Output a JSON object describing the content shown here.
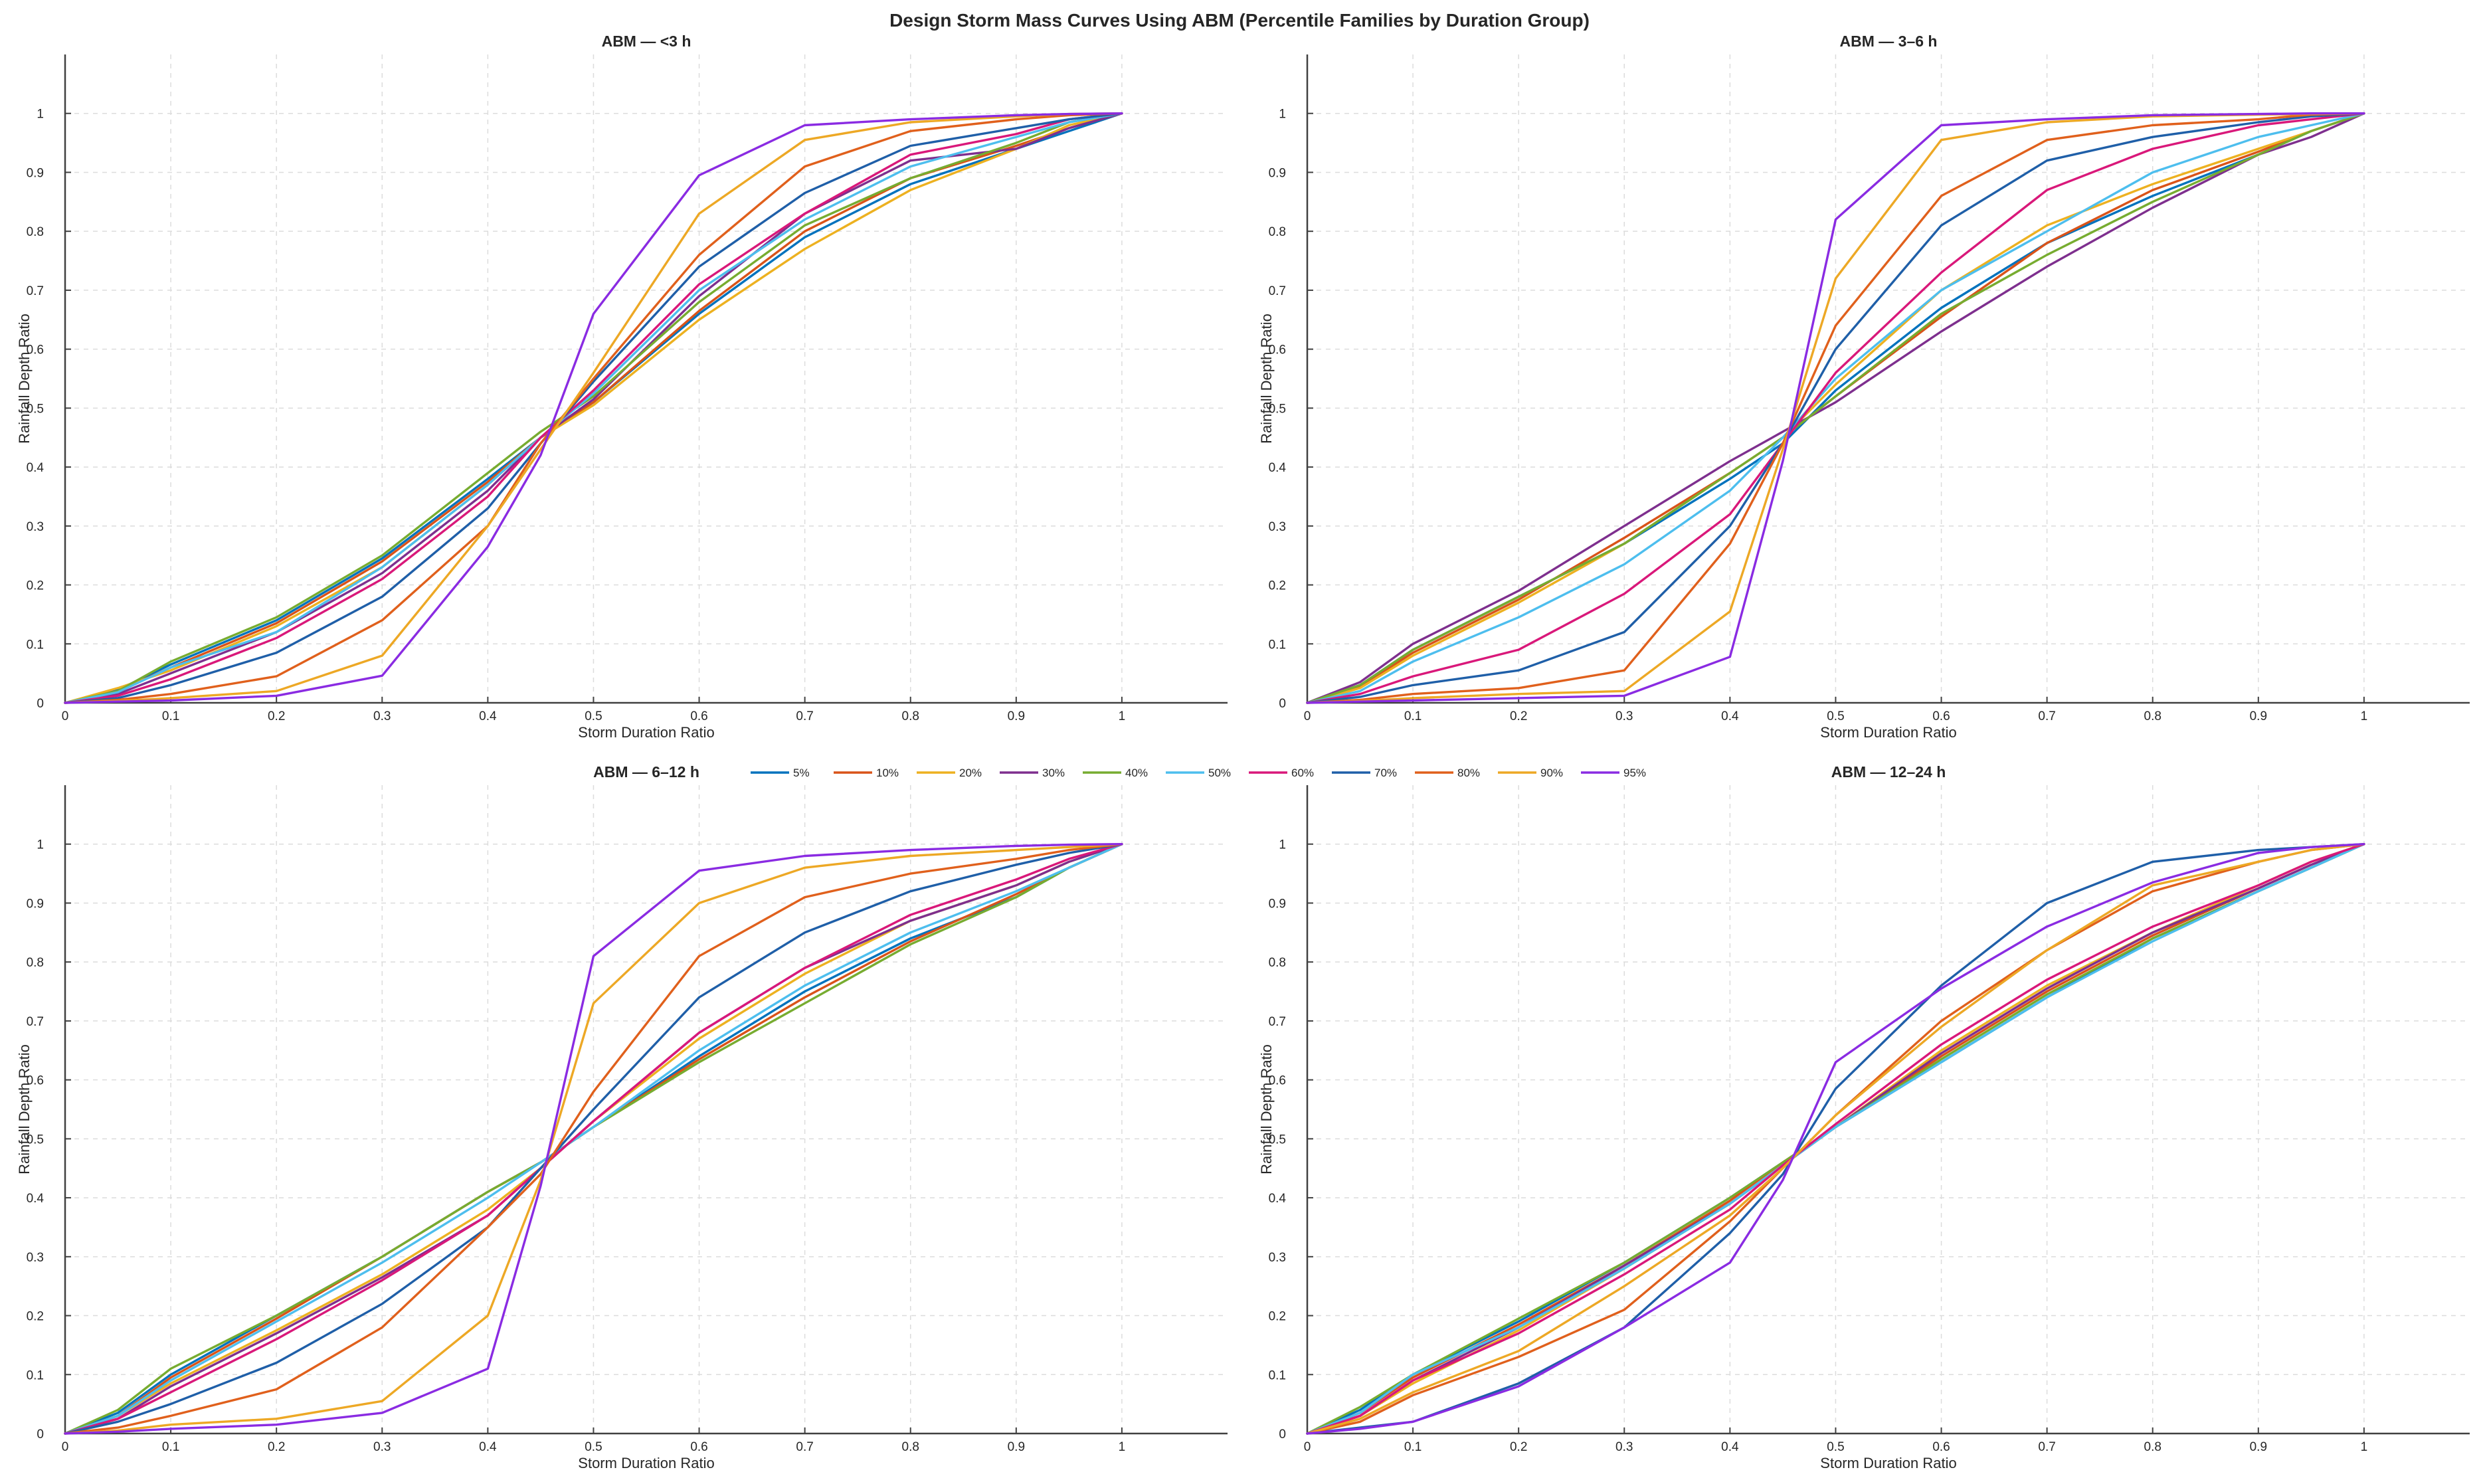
{
  "figure": {
    "title": "Design Storm Mass Curves Using ABM (Percentile Families by Duration Group)"
  },
  "legend": {
    "entries": [
      "5%",
      "10%",
      "20%",
      "30%",
      "40%",
      "50%",
      "60%",
      "70%",
      "80%",
      "90%",
      "95%"
    ],
    "colors": [
      "#0072BD",
      "#D95319",
      "#EDB120",
      "#7E2F8E",
      "#77AC30",
      "#4DBEEE",
      "#D9187A",
      "#1F5FA8",
      "#E0601C",
      "#EDA825",
      "#8A2BE2"
    ]
  },
  "chart_data": [
    {
      "type": "line",
      "title": "ABM — <3 h",
      "xlabel": "Storm Duration Ratio",
      "ylabel": "Rainfall Depth Ratio",
      "xlim": [
        0,
        1.1
      ],
      "ylim": [
        0,
        1.1
      ],
      "grid": true,
      "x_ticks": [
        "0",
        "0.1",
        "0.2",
        "0.3",
        "0.4",
        "0.5",
        "0.6",
        "0.7",
        "0.8",
        "0.9",
        "1"
      ],
      "y_ticks": [
        "0",
        "0.1",
        "0.2",
        "0.3",
        "0.4",
        "0.5",
        "0.6",
        "0.7",
        "0.8",
        "0.9",
        "1"
      ],
      "x": [
        0,
        0.05,
        0.1,
        0.2,
        0.3,
        0.4,
        0.45,
        0.5,
        0.6,
        0.7,
        0.8,
        0.9,
        0.95,
        1
      ],
      "series": [
        {
          "name": "5%",
          "values": [
            0,
            0.022,
            0.065,
            0.14,
            0.245,
            0.38,
            0.45,
            0.51,
            0.66,
            0.79,
            0.88,
            0.94,
            0.97,
            1
          ]
        },
        {
          "name": "10%",
          "values": [
            0,
            0.02,
            0.06,
            0.135,
            0.24,
            0.375,
            0.45,
            0.51,
            0.665,
            0.8,
            0.89,
            0.945,
            0.975,
            1
          ]
        },
        {
          "name": "20%",
          "values": [
            0,
            0.025,
            0.055,
            0.13,
            0.23,
            0.37,
            0.45,
            0.505,
            0.65,
            0.77,
            0.87,
            0.94,
            0.98,
            1
          ]
        },
        {
          "name": "30%",
          "values": [
            0,
            0.015,
            0.05,
            0.12,
            0.22,
            0.36,
            0.45,
            0.515,
            0.69,
            0.83,
            0.92,
            0.94,
            0.975,
            1
          ]
        },
        {
          "name": "40%",
          "values": [
            0,
            0.02,
            0.07,
            0.145,
            0.25,
            0.39,
            0.46,
            0.52,
            0.68,
            0.81,
            0.89,
            0.95,
            0.985,
            1
          ]
        },
        {
          "name": "50%",
          "values": [
            0,
            0.018,
            0.06,
            0.12,
            0.23,
            0.37,
            0.45,
            0.525,
            0.7,
            0.82,
            0.91,
            0.96,
            0.985,
            1
          ]
        },
        {
          "name": "60%",
          "values": [
            0,
            0.012,
            0.04,
            0.11,
            0.21,
            0.35,
            0.45,
            0.53,
            0.71,
            0.83,
            0.93,
            0.965,
            0.99,
            1
          ]
        },
        {
          "name": "70%",
          "values": [
            0,
            0.008,
            0.03,
            0.085,
            0.18,
            0.33,
            0.44,
            0.545,
            0.74,
            0.865,
            0.945,
            0.975,
            0.99,
            1
          ]
        },
        {
          "name": "80%",
          "values": [
            0,
            0.005,
            0.015,
            0.045,
            0.14,
            0.3,
            0.44,
            0.55,
            0.76,
            0.91,
            0.97,
            0.99,
            0.997,
            1
          ]
        },
        {
          "name": "90%",
          "values": [
            0,
            0.003,
            0.008,
            0.02,
            0.08,
            0.3,
            0.43,
            0.56,
            0.83,
            0.955,
            0.985,
            0.995,
            0.999,
            1
          ]
        },
        {
          "name": "95%",
          "values": [
            0,
            0.002,
            0.004,
            0.012,
            0.046,
            0.265,
            0.42,
            0.66,
            0.895,
            0.98,
            0.99,
            0.997,
            0.999,
            1
          ]
        }
      ]
    },
    {
      "type": "line",
      "title": "ABM — 3–6 h",
      "xlabel": "Storm Duration Ratio",
      "ylabel": "Rainfall Depth Ratio",
      "xlim": [
        0,
        1.1
      ],
      "ylim": [
        0,
        1.1
      ],
      "grid": true,
      "x_ticks": [
        "0",
        "0.1",
        "0.2",
        "0.3",
        "0.4",
        "0.5",
        "0.6",
        "0.7",
        "0.8",
        "0.9",
        "1"
      ],
      "y_ticks": [
        "0",
        "0.1",
        "0.2",
        "0.3",
        "0.4",
        "0.5",
        "0.6",
        "0.7",
        "0.8",
        "0.9",
        "1"
      ],
      "x": [
        0,
        0.05,
        0.1,
        0.2,
        0.3,
        0.4,
        0.45,
        0.5,
        0.6,
        0.7,
        0.8,
        0.9,
        0.95,
        1
      ],
      "series": [
        {
          "name": "5%",
          "values": [
            0,
            0.03,
            0.09,
            0.18,
            0.27,
            0.38,
            0.44,
            0.53,
            0.67,
            0.78,
            0.86,
            0.93,
            0.97,
            1
          ]
        },
        {
          "name": "10%",
          "values": [
            0,
            0.028,
            0.085,
            0.175,
            0.28,
            0.39,
            0.45,
            0.52,
            0.655,
            0.78,
            0.87,
            0.935,
            0.97,
            1
          ]
        },
        {
          "name": "20%",
          "values": [
            0,
            0.025,
            0.08,
            0.17,
            0.27,
            0.39,
            0.45,
            0.54,
            0.7,
            0.81,
            0.88,
            0.94,
            0.97,
            1
          ]
        },
        {
          "name": "30%",
          "values": [
            0,
            0.035,
            0.1,
            0.19,
            0.3,
            0.41,
            0.46,
            0.51,
            0.63,
            0.74,
            0.84,
            0.93,
            0.96,
            1
          ]
        },
        {
          "name": "40%",
          "values": [
            0,
            0.03,
            0.09,
            0.18,
            0.27,
            0.39,
            0.45,
            0.52,
            0.66,
            0.76,
            0.85,
            0.93,
            0.97,
            1
          ]
        },
        {
          "name": "50%",
          "values": [
            0,
            0.02,
            0.07,
            0.145,
            0.235,
            0.36,
            0.45,
            0.55,
            0.7,
            0.8,
            0.9,
            0.96,
            0.98,
            1
          ]
        },
        {
          "name": "60%",
          "values": [
            0,
            0.015,
            0.045,
            0.09,
            0.185,
            0.32,
            0.44,
            0.56,
            0.73,
            0.87,
            0.94,
            0.98,
            0.99,
            1
          ]
        },
        {
          "name": "70%",
          "values": [
            0,
            0.01,
            0.03,
            0.055,
            0.12,
            0.3,
            0.44,
            0.6,
            0.81,
            0.92,
            0.96,
            0.985,
            0.995,
            1
          ]
        },
        {
          "name": "80%",
          "values": [
            0,
            0.005,
            0.015,
            0.025,
            0.055,
            0.27,
            0.44,
            0.64,
            0.86,
            0.955,
            0.98,
            0.99,
            0.998,
            1
          ]
        },
        {
          "name": "90%",
          "values": [
            0,
            0.003,
            0.008,
            0.015,
            0.02,
            0.155,
            0.43,
            0.72,
            0.955,
            0.985,
            0.995,
            0.998,
            0.999,
            1
          ]
        },
        {
          "name": "95%",
          "values": [
            0,
            0.002,
            0.004,
            0.008,
            0.012,
            0.078,
            0.41,
            0.82,
            0.98,
            0.99,
            0.997,
            0.999,
            1,
            1
          ]
        }
      ]
    },
    {
      "type": "line",
      "title": "ABM — 6–12 h",
      "xlabel": "Storm Duration Ratio",
      "ylabel": "Rainfall Depth Ratio",
      "xlim": [
        0,
        1.1
      ],
      "ylim": [
        0,
        1.1
      ],
      "grid": true,
      "x_ticks": [
        "0",
        "0.1",
        "0.2",
        "0.3",
        "0.4",
        "0.5",
        "0.6",
        "0.7",
        "0.8",
        "0.9",
        "1"
      ],
      "y_ticks": [
        "0",
        "0.1",
        "0.2",
        "0.3",
        "0.4",
        "0.5",
        "0.6",
        "0.7",
        "0.8",
        "0.9",
        "1"
      ],
      "x": [
        0,
        0.05,
        0.1,
        0.2,
        0.3,
        0.4,
        0.45,
        0.5,
        0.6,
        0.7,
        0.8,
        0.9,
        0.95,
        1
      ],
      "series": [
        {
          "name": "5%",
          "values": [
            0,
            0.035,
            0.1,
            0.2,
            0.3,
            0.41,
            0.46,
            0.52,
            0.64,
            0.75,
            0.84,
            0.91,
            0.96,
            1
          ]
        },
        {
          "name": "10%",
          "values": [
            0,
            0.03,
            0.095,
            0.195,
            0.3,
            0.41,
            0.46,
            0.52,
            0.635,
            0.74,
            0.835,
            0.915,
            0.96,
            1
          ]
        },
        {
          "name": "20%",
          "values": [
            0,
            0.03,
            0.085,
            0.175,
            0.27,
            0.38,
            0.45,
            0.53,
            0.67,
            0.78,
            0.87,
            0.93,
            0.97,
            1
          ]
        },
        {
          "name": "30%",
          "values": [
            0,
            0.025,
            0.08,
            0.17,
            0.265,
            0.37,
            0.45,
            0.53,
            0.68,
            0.79,
            0.87,
            0.93,
            0.97,
            1
          ]
        },
        {
          "name": "40%",
          "values": [
            0,
            0.04,
            0.11,
            0.2,
            0.3,
            0.41,
            0.46,
            0.52,
            0.63,
            0.73,
            0.83,
            0.91,
            0.96,
            1
          ]
        },
        {
          "name": "50%",
          "values": [
            0,
            0.03,
            0.09,
            0.19,
            0.29,
            0.4,
            0.46,
            0.52,
            0.65,
            0.76,
            0.85,
            0.92,
            0.96,
            1
          ]
        },
        {
          "name": "60%",
          "values": [
            0,
            0.025,
            0.07,
            0.16,
            0.26,
            0.37,
            0.45,
            0.53,
            0.68,
            0.79,
            0.88,
            0.94,
            0.975,
            1
          ]
        },
        {
          "name": "70%",
          "values": [
            0,
            0.02,
            0.05,
            0.12,
            0.22,
            0.35,
            0.45,
            0.55,
            0.74,
            0.85,
            0.92,
            0.965,
            0.985,
            1
          ]
        },
        {
          "name": "80%",
          "values": [
            0,
            0.01,
            0.03,
            0.075,
            0.18,
            0.35,
            0.44,
            0.58,
            0.81,
            0.91,
            0.95,
            0.975,
            0.99,
            1
          ]
        },
        {
          "name": "90%",
          "values": [
            0,
            0.005,
            0.015,
            0.025,
            0.055,
            0.2,
            0.43,
            0.73,
            0.9,
            0.96,
            0.98,
            0.99,
            0.995,
            1
          ]
        },
        {
          "name": "95%",
          "values": [
            0,
            0.003,
            0.008,
            0.015,
            0.035,
            0.11,
            0.42,
            0.81,
            0.955,
            0.98,
            0.99,
            0.997,
            0.999,
            1
          ]
        }
      ]
    },
    {
      "type": "line",
      "title": "ABM — 12–24 h",
      "xlabel": "Storm Duration Ratio",
      "ylabel": "Rainfall Depth Ratio",
      "xlim": [
        0,
        1.1
      ],
      "ylim": [
        0,
        1.1
      ],
      "grid": true,
      "x_ticks": [
        "0",
        "0.1",
        "0.2",
        "0.3",
        "0.4",
        "0.5",
        "0.6",
        "0.7",
        "0.8",
        "0.9",
        "1"
      ],
      "y_ticks": [
        "0",
        "0.1",
        "0.2",
        "0.3",
        "0.4",
        "0.5",
        "0.6",
        "0.7",
        "0.8",
        "0.9",
        "1"
      ],
      "x": [
        0,
        0.05,
        0.1,
        0.2,
        0.3,
        0.4,
        0.45,
        0.5,
        0.6,
        0.7,
        0.8,
        0.9,
        0.95,
        1
      ],
      "series": [
        {
          "name": "5%",
          "values": [
            0,
            0.04,
            0.1,
            0.19,
            0.29,
            0.4,
            0.46,
            0.52,
            0.63,
            0.74,
            0.84,
            0.92,
            0.96,
            1
          ]
        },
        {
          "name": "10%",
          "values": [
            0,
            0.035,
            0.095,
            0.185,
            0.285,
            0.395,
            0.46,
            0.52,
            0.64,
            0.75,
            0.845,
            0.925,
            0.965,
            1
          ]
        },
        {
          "name": "20%",
          "values": [
            0,
            0.03,
            0.085,
            0.175,
            0.28,
            0.39,
            0.455,
            0.52,
            0.65,
            0.76,
            0.85,
            0.93,
            0.97,
            1
          ]
        },
        {
          "name": "30%",
          "values": [
            0,
            0.03,
            0.09,
            0.18,
            0.285,
            0.39,
            0.455,
            0.52,
            0.645,
            0.755,
            0.85,
            0.925,
            0.965,
            1
          ]
        },
        {
          "name": "40%",
          "values": [
            0,
            0.045,
            0.1,
            0.195,
            0.29,
            0.4,
            0.46,
            0.52,
            0.635,
            0.745,
            0.84,
            0.92,
            0.96,
            1
          ]
        },
        {
          "name": "50%",
          "values": [
            0,
            0.035,
            0.1,
            0.18,
            0.28,
            0.39,
            0.455,
            0.52,
            0.63,
            0.74,
            0.835,
            0.92,
            0.96,
            1
          ]
        },
        {
          "name": "60%",
          "values": [
            0,
            0.03,
            0.09,
            0.17,
            0.27,
            0.38,
            0.455,
            0.525,
            0.66,
            0.77,
            0.86,
            0.93,
            0.97,
            1
          ]
        },
        {
          "name": "70%",
          "values": [
            0,
            0.01,
            0.02,
            0.085,
            0.18,
            0.34,
            0.44,
            0.585,
            0.76,
            0.9,
            0.97,
            0.99,
            0.995,
            1
          ]
        },
        {
          "name": "80%",
          "values": [
            0,
            0.02,
            0.065,
            0.13,
            0.21,
            0.36,
            0.45,
            0.54,
            0.7,
            0.82,
            0.92,
            0.97,
            0.99,
            1
          ]
        },
        {
          "name": "90%",
          "values": [
            0,
            0.025,
            0.07,
            0.14,
            0.25,
            0.37,
            0.45,
            0.54,
            0.69,
            0.82,
            0.93,
            0.97,
            0.99,
            1
          ]
        },
        {
          "name": "95%",
          "values": [
            0,
            0.008,
            0.02,
            0.08,
            0.18,
            0.29,
            0.43,
            0.63,
            0.755,
            0.86,
            0.935,
            0.985,
            0.995,
            1
          ]
        }
      ]
    }
  ]
}
